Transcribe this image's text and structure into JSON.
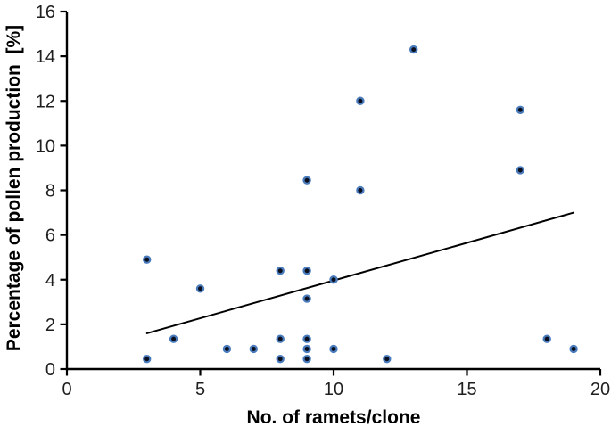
{
  "chart_data": {
    "type": "scatter",
    "title": "",
    "xlabel": "No. of ramets/clone",
    "ylabel": "Percentage of pollen production  [%]",
    "xlim": [
      0,
      20
    ],
    "ylim": [
      0,
      16
    ],
    "x_ticks": [
      "0",
      "5",
      "10",
      "15",
      "20"
    ],
    "y_ticks": [
      "0",
      "2",
      "4",
      "6",
      "8",
      "10",
      "12",
      "14",
      "16"
    ],
    "grid": false,
    "legend_position": "none",
    "points": [
      [
        3,
        4.9
      ],
      [
        3,
        0.45
      ],
      [
        4,
        1.35
      ],
      [
        5,
        3.6
      ],
      [
        6,
        0.9
      ],
      [
        7,
        0.9
      ],
      [
        8,
        4.4
      ],
      [
        8,
        1.35
      ],
      [
        8,
        0.45
      ],
      [
        9,
        8.45
      ],
      [
        9,
        4.4
      ],
      [
        9,
        3.15
      ],
      [
        9,
        1.35
      ],
      [
        9,
        0.9
      ],
      [
        9,
        0.45
      ],
      [
        10,
        4.0
      ],
      [
        10,
        0.9
      ],
      [
        11,
        12.0
      ],
      [
        11,
        8.0
      ],
      [
        12,
        0.45
      ],
      [
        13,
        14.3
      ],
      [
        17,
        11.6
      ],
      [
        17,
        8.9
      ],
      [
        18,
        1.35
      ],
      [
        19,
        0.9
      ]
    ],
    "trendline": {
      "x1": 3,
      "y1": 1.6,
      "x2": 19,
      "y2": 7.0
    },
    "colors": {
      "marker_fill": "#0a0f1d",
      "marker_stroke": "#4a7bbd",
      "trendline": "#000000",
      "axis": "#000000",
      "tick_label": "#1f1f1f"
    }
  }
}
